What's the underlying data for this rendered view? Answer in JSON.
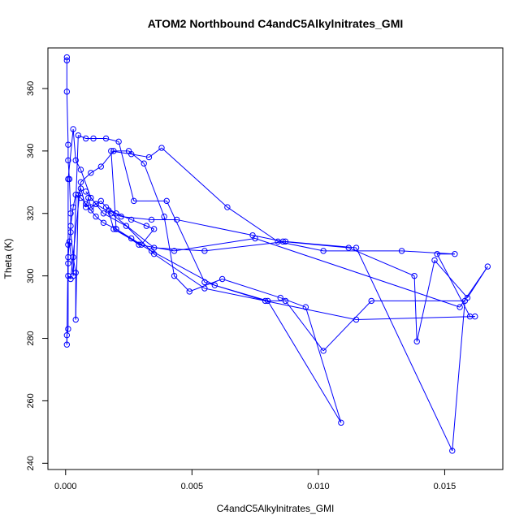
{
  "chart_data": {
    "type": "scatter",
    "title": "ATOM2 Northbound C4andC5Alkylnitrates_GMI",
    "xlabel": "C4andC5Alkylnitrates_GMI",
    "ylabel": "Theta (K)",
    "xlim": [
      -0.0007,
      0.0173
    ],
    "ylim": [
      238,
      373
    ],
    "x_ticks": [
      0.0,
      0.005,
      0.01,
      0.015
    ],
    "x_tick_labels": [
      "0.000",
      "0.005",
      "0.010",
      "0.015"
    ],
    "y_ticks": [
      240,
      260,
      280,
      300,
      320,
      340,
      360
    ],
    "y_tick_labels": [
      "240",
      "260",
      "280",
      "300",
      "320",
      "340",
      "360"
    ],
    "grid": false,
    "color": "#0000ff",
    "marker": "open-circle",
    "connected": true,
    "series": [
      {
        "x": [
          5e-05,
          5e-05,
          5e-05,
          0.0001,
          0.0001,
          0.00015,
          0.0002,
          0.0002,
          0.0003,
          0.0004,
          0.0004,
          0.0005,
          0.0006,
          0.0008,
          0.0009,
          0.001,
          0.0012,
          0.0014,
          0.0016,
          0.002,
          0.0026,
          0.0032,
          0.0035,
          0.003,
          0.0026,
          0.002,
          0.0015,
          0.0012,
          0.001,
          0.0008,
          0.0006,
          0.0004,
          0.0003,
          0.0002,
          0.0001,
          0.0001,
          0.0002,
          0.0006,
          0.001,
          0.0014,
          0.0019,
          0.0025,
          0.0031,
          0.0039,
          0.0043,
          0.0049,
          0.0062,
          0.0085,
          0.0095,
          0.0109,
          0.008,
          0.0059,
          0.0034,
          0.0019,
          0.0017,
          0.0022,
          0.0034,
          0.0044,
          0.0074,
          0.0086,
          0.0112,
          0.0138,
          0.0139,
          0.0146,
          0.0159,
          0.0167,
          0.0156,
          0.0075,
          0.0043,
          0.0029,
          0.002,
          0.0018,
          0.0026,
          0.0033,
          0.0038,
          0.0064,
          0.0084,
          0.0102,
          0.0133,
          0.0154,
          0.0147,
          0.016,
          0.0162,
          0.0115,
          0.0055,
          0.0035,
          0.0024,
          0.0015,
          0.001,
          0.0006,
          0.0004,
          0.0003,
          0.0001,
          0.0001,
          0.0001,
          5e-05,
          5e-05,
          0.0001,
          0.00015,
          0.0003,
          0.0005,
          0.0008,
          0.0011,
          0.0016,
          0.0021,
          0.0027,
          0.004,
          0.0055,
          0.0079,
          0.0087,
          0.0102,
          0.0121,
          0.0158,
          0.0153,
          0.0115,
          0.0087,
          0.0055,
          0.0035,
          0.0018,
          0.0012,
          0.0008
        ],
        "y": [
          370,
          369,
          359,
          342,
          337,
          331,
          320,
          314,
          306,
          301,
          286,
          326,
          328,
          322,
          325,
          322,
          323,
          324,
          322,
          320,
          318,
          316,
          315,
          310,
          312,
          315,
          317,
          319,
          321,
          323,
          325,
          326,
          322,
          316,
          306,
          300,
          299,
          330,
          333,
          335,
          340,
          340,
          336,
          319,
          300,
          295,
          299,
          293,
          290,
          253,
          292,
          297,
          308,
          315,
          321,
          319,
          318,
          318,
          313,
          311,
          309,
          300,
          279,
          305,
          293,
          303,
          290,
          312,
          308,
          310,
          315,
          340,
          339,
          338,
          341,
          322,
          311,
          308,
          308,
          307,
          307,
          287,
          287,
          286,
          296,
          307,
          316,
          320,
          325,
          334,
          337,
          347,
          331,
          304,
          283,
          281,
          278,
          310,
          311,
          300,
          345,
          344,
          344,
          344,
          343,
          324,
          324,
          298,
          292,
          292,
          276,
          292,
          292,
          244,
          309,
          311,
          308,
          309,
          320,
          323,
          327
        ]
      }
    ]
  }
}
